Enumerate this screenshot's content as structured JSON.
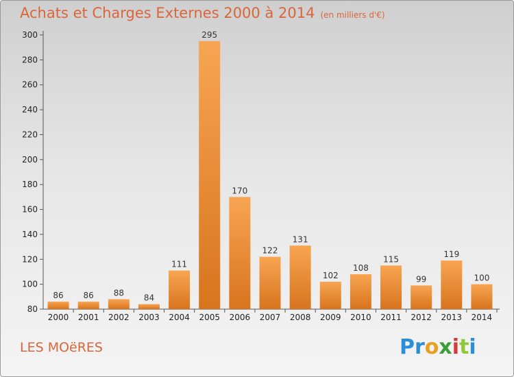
{
  "header": {
    "title": "Achats et Charges Externes 2000 à 2014",
    "subtitle": "(en milliers d'€)"
  },
  "footer": {
    "commune": "LES MOëRES",
    "logo": [
      "Pr",
      "o",
      "x",
      "i",
      "t",
      "i"
    ]
  },
  "colors": {
    "bar_light": "#f7a552",
    "bar_dark": "#d8741e",
    "title": "#d9663a"
  },
  "chart_data": {
    "type": "bar",
    "title": "Achats et Charges Externes 2000 à 2014",
    "subtitle": "(en milliers d'€)",
    "categories": [
      "2000",
      "2001",
      "2002",
      "2003",
      "2004",
      "2005",
      "2006",
      "2007",
      "2008",
      "2009",
      "2010",
      "2011",
      "2012",
      "2013",
      "2014"
    ],
    "values": [
      86,
      86,
      88,
      84,
      111,
      295,
      170,
      122,
      131,
      102,
      108,
      115,
      99,
      119,
      100
    ],
    "ylim": [
      80,
      300
    ],
    "yticks": [
      80,
      100,
      120,
      140,
      160,
      180,
      200,
      220,
      240,
      260,
      280,
      300
    ],
    "grid": false,
    "legend": "none"
  }
}
